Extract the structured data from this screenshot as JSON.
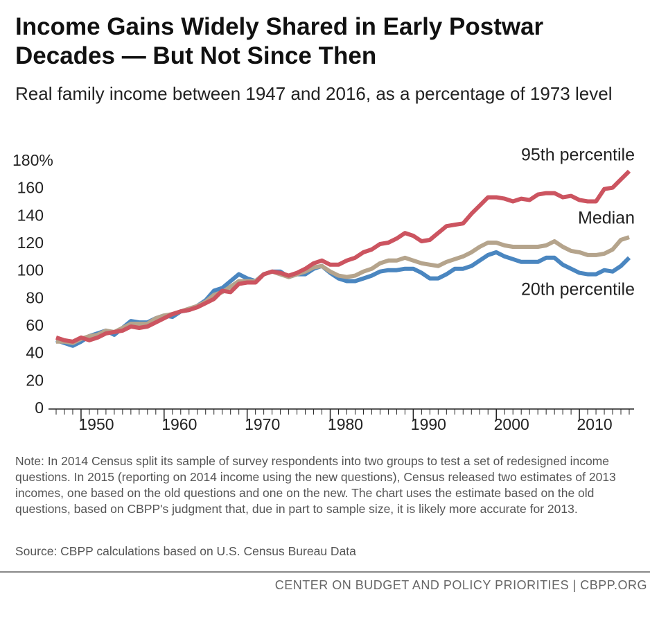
{
  "chart_data": {
    "type": "line",
    "title": "Income Gains Widely Shared in Early Postwar Decades — But Not Since Then",
    "subtitle": "Real family income between 1947 and 2016, as a percentage of 1973 level",
    "x": [
      1947,
      1948,
      1949,
      1950,
      1951,
      1952,
      1953,
      1954,
      1955,
      1956,
      1957,
      1958,
      1959,
      1960,
      1961,
      1962,
      1963,
      1964,
      1965,
      1966,
      1967,
      1968,
      1969,
      1970,
      1971,
      1972,
      1973,
      1974,
      1975,
      1976,
      1977,
      1978,
      1979,
      1980,
      1981,
      1982,
      1983,
      1984,
      1985,
      1986,
      1987,
      1988,
      1989,
      1990,
      1991,
      1992,
      1993,
      1994,
      1995,
      1996,
      1997,
      1998,
      1999,
      2000,
      2001,
      2002,
      2003,
      2004,
      2005,
      2006,
      2007,
      2008,
      2009,
      2010,
      2011,
      2012,
      2013,
      2014,
      2015,
      2016
    ],
    "series": [
      {
        "name": "20th percentile",
        "color": "#4a86c0",
        "values": [
          50,
          48,
          46,
          49,
          53,
          55,
          57,
          54,
          59,
          64,
          63,
          63,
          66,
          68,
          67,
          71,
          72,
          75,
          79,
          86,
          88,
          93,
          98,
          95,
          93,
          98,
          100,
          100,
          96,
          98,
          98,
          102,
          104,
          99,
          95,
          93,
          93,
          95,
          97,
          100,
          101,
          101,
          102,
          102,
          99,
          95,
          95,
          98,
          102,
          102,
          104,
          108,
          112,
          114,
          111,
          109,
          107,
          107,
          107,
          110,
          110,
          105,
          102,
          99,
          98,
          98,
          101,
          100,
          104,
          110
        ]
      },
      {
        "name": "Median",
        "color": "#b5a48c",
        "values": [
          49,
          49,
          48,
          51,
          53,
          54,
          57,
          56,
          59,
          62,
          62,
          62,
          66,
          68,
          69,
          71,
          73,
          75,
          78,
          83,
          85,
          89,
          93,
          93,
          93,
          98,
          100,
          98,
          96,
          98,
          100,
          103,
          104,
          100,
          97,
          96,
          97,
          100,
          102,
          106,
          108,
          108,
          110,
          108,
          106,
          105,
          104,
          107,
          109,
          111,
          114,
          118,
          121,
          121,
          119,
          118,
          118,
          118,
          118,
          119,
          122,
          118,
          115,
          114,
          112,
          112,
          113,
          116,
          123,
          125
        ]
      },
      {
        "name": "95th percentile",
        "color": "#cc5460",
        "values": [
          52,
          50,
          49,
          52,
          50,
          52,
          55,
          56,
          57,
          60,
          59,
          60,
          63,
          66,
          69,
          71,
          72,
          74,
          77,
          80,
          86,
          85,
          91,
          92,
          92,
          98,
          100,
          99,
          97,
          99,
          102,
          106,
          108,
          105,
          105,
          108,
          110,
          114,
          116,
          120,
          121,
          124,
          128,
          126,
          122,
          123,
          128,
          133,
          134,
          135,
          142,
          148,
          154,
          154,
          153,
          151,
          153,
          152,
          156,
          157,
          157,
          154,
          155,
          152,
          151,
          151,
          160,
          161,
          167,
          173
        ]
      }
    ],
    "xlim": [
      1947,
      2016
    ],
    "xticks": [
      1950,
      1960,
      1970,
      1980,
      1990,
      2000,
      2010
    ],
    "ylim": [
      0,
      180
    ],
    "yticks": [
      0,
      20,
      40,
      60,
      80,
      100,
      120,
      140,
      160,
      {
        "value": 180,
        "label": "180%"
      }
    ],
    "grid": false,
    "note": "Note: In 2014 Census split its sample of survey respondents into two groups to test a set of redesigned income questions.  In 2015 (reporting on 2014 income using the new questions), Census released two estimates of 2013 incomes, one based on the old questions and one on the new.  The chart uses the estimate based on the old questions, based on CBPP's judgment that, due in part to sample size, it is likely more accurate for 2013.",
    "source": "Source: CBPP calculations based on U.S. Census Bureau Data",
    "footer": "CENTER ON BUDGET AND POLICY PRIORITIES | CBPP.ORG"
  }
}
